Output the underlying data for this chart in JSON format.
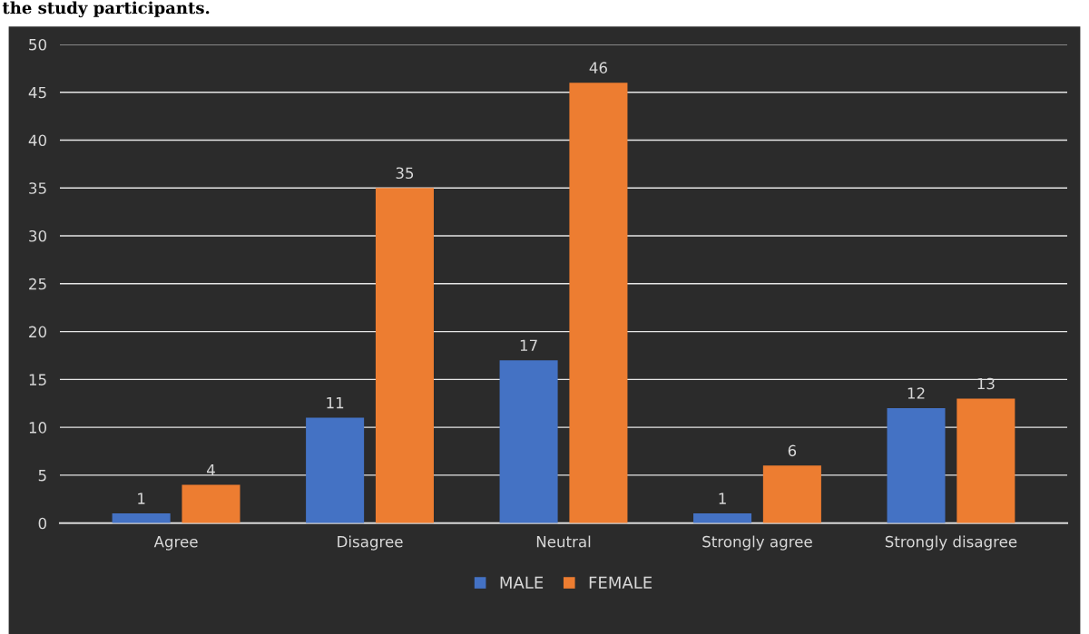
{
  "chart_data": {
    "type": "bar",
    "title": "the study participants.",
    "categories": [
      "Agree",
      "Disagree",
      "Neutral",
      "Strongly agree",
      "Strongly disagree"
    ],
    "series": [
      {
        "name": "MALE",
        "color": "#4472c4",
        "values": [
          1,
          11,
          17,
          1,
          12
        ]
      },
      {
        "name": "FEMALE",
        "color": "#ed7d31",
        "values": [
          4,
          35,
          46,
          6,
          13
        ]
      }
    ],
    "ylim": [
      0,
      50
    ],
    "yticks": [
      0,
      5,
      10,
      15,
      20,
      25,
      30,
      35,
      40,
      45,
      50
    ],
    "grid": "y",
    "legend": "bottom",
    "data_labels": true
  }
}
